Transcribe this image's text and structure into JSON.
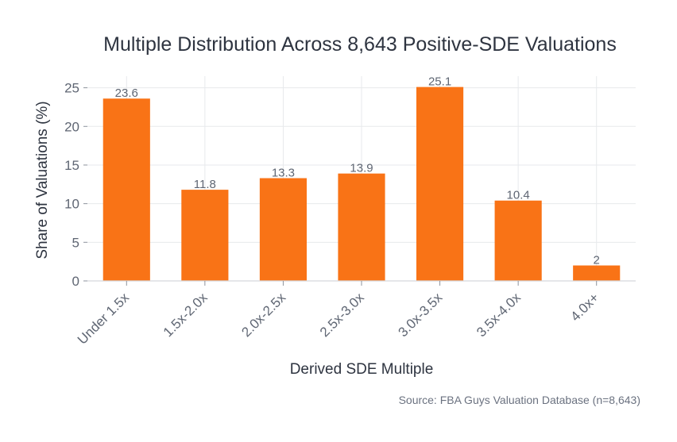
{
  "chart_data": {
    "type": "bar",
    "title": "Multiple Distribution Across 8,643 Positive-SDE Valuations",
    "xlabel": "Derived SDE Multiple",
    "ylabel": "Share of Valuations (%)",
    "categories": [
      "Under 1.5x",
      "1.5x-2.0x",
      "2.0x-2.5x",
      "2.5x-3.0x",
      "3.0x-3.5x",
      "3.5x-4.0x",
      "4.0x+"
    ],
    "values": [
      23.6,
      11.8,
      13.3,
      13.9,
      25.1,
      10.4,
      2
    ],
    "value_labels": [
      "23.6",
      "11.8",
      "13.3",
      "13.9",
      "25.1",
      "10.4",
      "2"
    ],
    "ylim": [
      0,
      26.5
    ],
    "yticks": [
      0,
      5,
      10,
      15,
      20,
      25
    ],
    "grid": true,
    "bar_color": "#f97316",
    "source": "Source: FBA Guys Valuation Database (n=8,643)"
  }
}
